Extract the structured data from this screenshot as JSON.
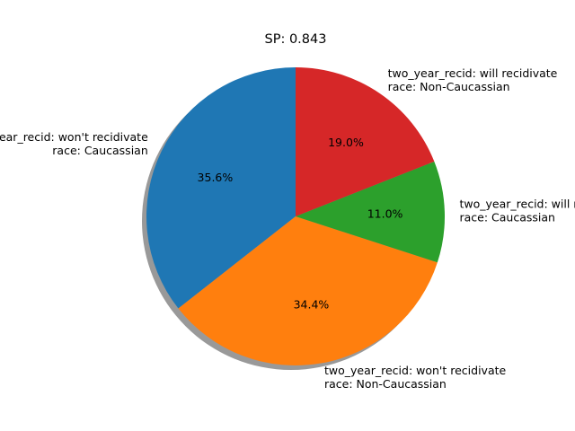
{
  "chart_data": {
    "type": "pie",
    "title": "SP: 0.843",
    "start_angle_deg": 90,
    "direction": "counterclockwise",
    "shadow": true,
    "slices": [
      {
        "label_lines": [
          "two_year_recid: won't recidivate",
          "race: Caucassian"
        ],
        "value": 35.6,
        "pct_label": "35.6%",
        "color": "#1f77b4"
      },
      {
        "label_lines": [
          "two_year_recid: won't recidivate",
          "race: Non-Caucassian"
        ],
        "value": 34.4,
        "pct_label": "34.4%",
        "color": "#ff7f0e"
      },
      {
        "label_lines": [
          "two_year_recid: will recidivate",
          "race: Caucassian"
        ],
        "value": 11.0,
        "pct_label": "11.0%",
        "color": "#2ca02c"
      },
      {
        "label_lines": [
          "two_year_recid: will recidivate",
          "race: Non-Caucassian"
        ],
        "value": 19.0,
        "pct_label": "19.0%",
        "color": "#d62728"
      }
    ]
  }
}
